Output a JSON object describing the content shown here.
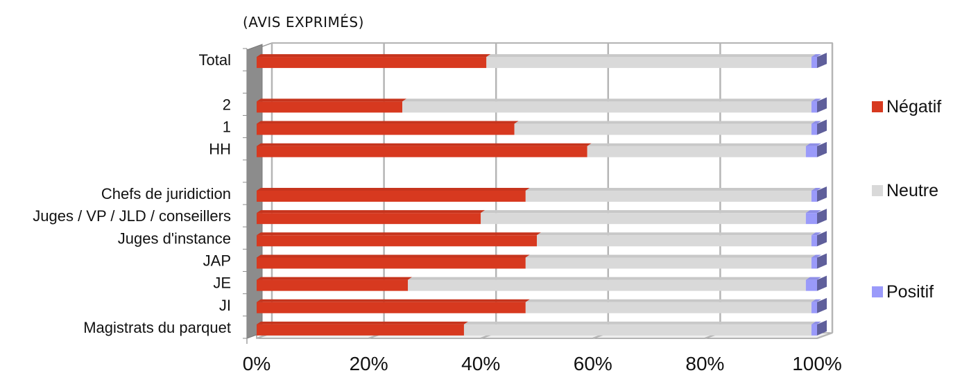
{
  "chart_data": {
    "type": "bar",
    "orientation": "horizontal",
    "stacked": "percent",
    "title": "(AVIS EXPRIMÉS)",
    "categories": [
      "Total",
      "",
      "2",
      "1",
      "HH",
      "",
      "Chefs de juridiction",
      "Juges / VP / JLD / conseillers",
      "Juges d'instance",
      "JAP",
      "JE",
      "JI",
      "Magistrats du parquet"
    ],
    "series": [
      {
        "name": "Négatif",
        "color": "#d7391f",
        "values": [
          41,
          null,
          26,
          46,
          59,
          null,
          48,
          40,
          50,
          48,
          27,
          48,
          37
        ]
      },
      {
        "name": "Neutre",
        "color": "#d9d9d9",
        "values": [
          58,
          null,
          73,
          53,
          39,
          null,
          51,
          58,
          49,
          51,
          71,
          51,
          62
        ]
      },
      {
        "name": "Positif",
        "color": "#9a9afa",
        "values": [
          1,
          null,
          1,
          1,
          2,
          null,
          1,
          2,
          1,
          1,
          2,
          1,
          1
        ]
      }
    ],
    "xlim": [
      0,
      100
    ],
    "xticks": [
      "0%",
      "20%",
      "40%",
      "60%",
      "80%",
      "100%"
    ],
    "grid": true,
    "legend_position": "right"
  }
}
